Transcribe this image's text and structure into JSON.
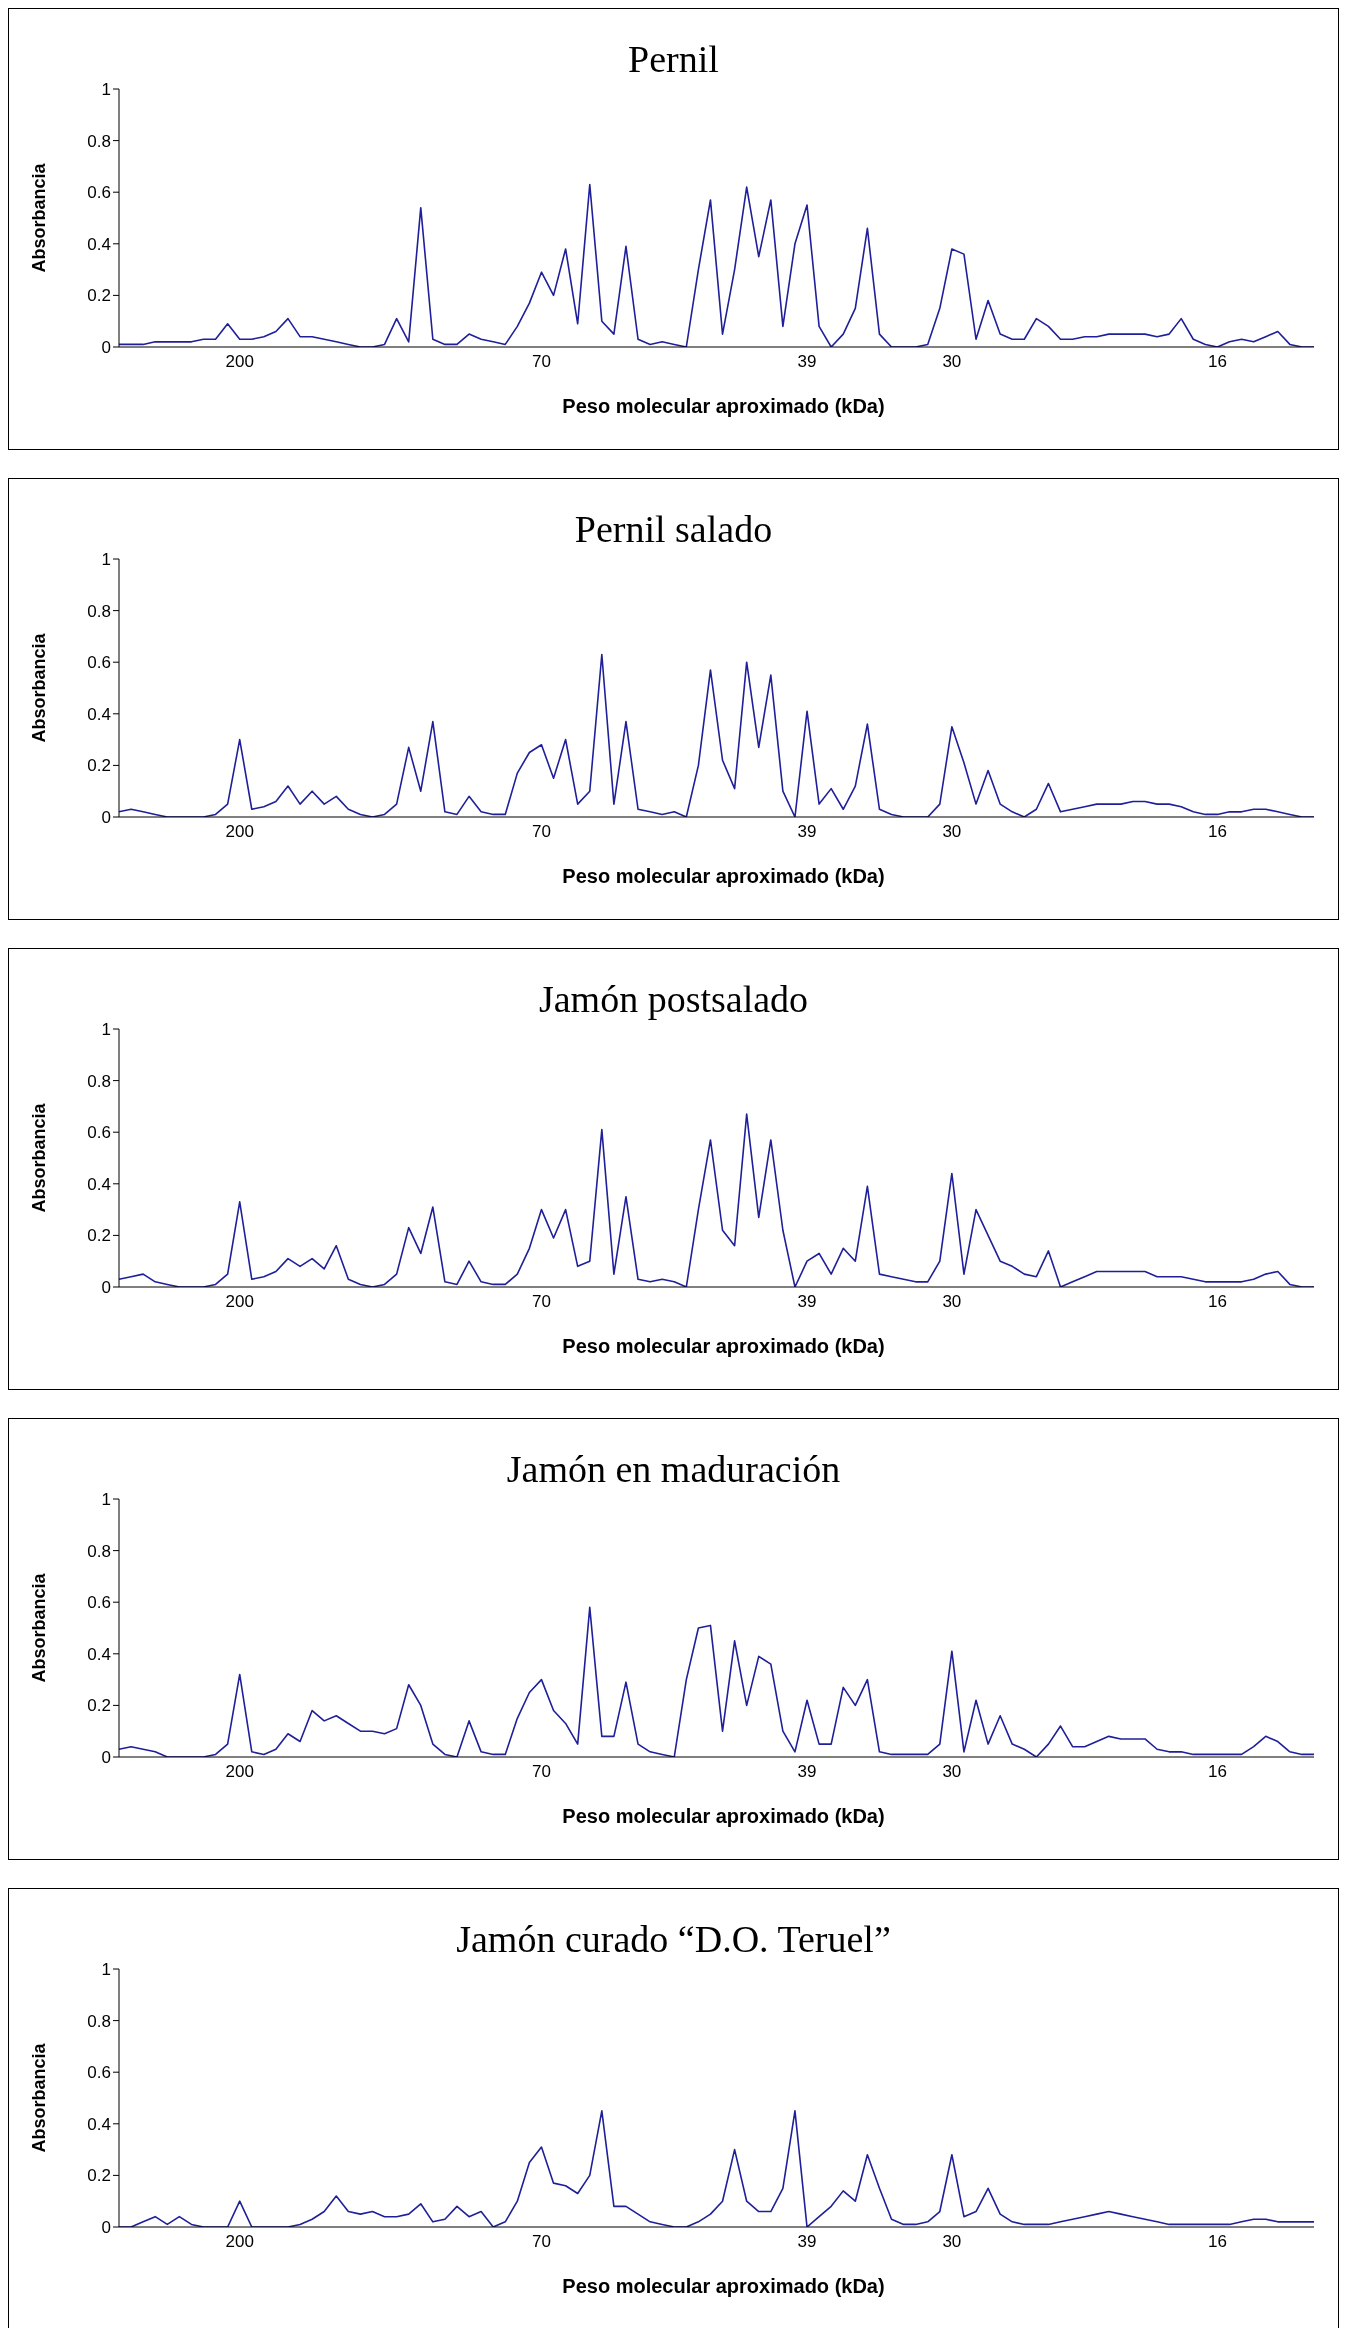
{
  "chart_data": [
    {
      "type": "line",
      "title": "Pernil",
      "xlabel": "Peso molecular aproximado (kDa)",
      "ylabel": "Absorbancia",
      "ylim": [
        0,
        1
      ],
      "yticks": [
        0,
        0.2,
        0.4,
        0.6,
        0.8,
        1
      ],
      "color": "#1f1f99",
      "categories": [
        null,
        null,
        null,
        null,
        null,
        null,
        null,
        null,
        null,
        null,
        "200",
        null,
        null,
        null,
        null,
        null,
        null,
        null,
        null,
        null,
        null,
        null,
        null,
        null,
        null,
        null,
        null,
        null,
        null,
        null,
        null,
        null,
        null,
        null,
        null,
        "70",
        null,
        null,
        null,
        null,
        null,
        null,
        null,
        null,
        null,
        null,
        null,
        null,
        null,
        null,
        null,
        null,
        null,
        null,
        null,
        null,
        null,
        "39",
        null,
        null,
        null,
        null,
        null,
        null,
        null,
        null,
        null,
        null,
        null,
        "30",
        null,
        null,
        null,
        null,
        null,
        null,
        null,
        null,
        null,
        null,
        null,
        null,
        null,
        null,
        null,
        null,
        null,
        null,
        null,
        null,
        null,
        "16",
        null,
        null,
        null,
        null,
        null,
        null,
        null,
        null
      ],
      "values": [
        0.01,
        0.01,
        0.01,
        0.02,
        0.02,
        0.02,
        0.02,
        0.03,
        0.03,
        0.09,
        0.03,
        0.03,
        0.04,
        0.06,
        0.11,
        0.04,
        0.04,
        0.03,
        0.02,
        0.01,
        0,
        0,
        0.01,
        0.11,
        0.02,
        0.54,
        0.03,
        0.01,
        0.01,
        0.05,
        0.03,
        0.02,
        0.01,
        0.08,
        0.17,
        0.29,
        0.2,
        0.38,
        0.09,
        0.63,
        0.1,
        0.05,
        0.39,
        0.03,
        0.01,
        0.02,
        0.01,
        0,
        0.3,
        0.57,
        0.05,
        0.3,
        0.62,
        0.35,
        0.57,
        0.08,
        0.4,
        0.55,
        0.08,
        0,
        0.05,
        0.15,
        0.46,
        0.05,
        0,
        0,
        0,
        0.01,
        0.15,
        0.38,
        0.36,
        0.03,
        0.18,
        0.05,
        0.03,
        0.03,
        0.11,
        0.08,
        0.03,
        0.03,
        0.04,
        0.04,
        0.05,
        0.05,
        0.05,
        0.05,
        0.04,
        0.05,
        0.11,
        0.03,
        0.01,
        0,
        0.02,
        0.03,
        0.02,
        0.04,
        0.06,
        0.01,
        0,
        0
      ]
    },
    {
      "type": "line",
      "title": "Pernil salado",
      "xlabel": "Peso molecular aproximado (kDa)",
      "ylabel": "Absorbancia",
      "ylim": [
        0,
        1
      ],
      "yticks": [
        0,
        0.2,
        0.4,
        0.6,
        0.8,
        1
      ],
      "color": "#1f1f99",
      "categories": [
        null,
        null,
        null,
        null,
        null,
        null,
        null,
        null,
        null,
        null,
        "200",
        null,
        null,
        null,
        null,
        null,
        null,
        null,
        null,
        null,
        null,
        null,
        null,
        null,
        null,
        null,
        null,
        null,
        null,
        null,
        null,
        null,
        null,
        null,
        null,
        "70",
        null,
        null,
        null,
        null,
        null,
        null,
        null,
        null,
        null,
        null,
        null,
        null,
        null,
        null,
        null,
        null,
        null,
        null,
        null,
        null,
        null,
        "39",
        null,
        null,
        null,
        null,
        null,
        null,
        null,
        null,
        null,
        null,
        null,
        "30",
        null,
        null,
        null,
        null,
        null,
        null,
        null,
        null,
        null,
        null,
        null,
        null,
        null,
        null,
        null,
        null,
        null,
        null,
        null,
        null,
        null,
        "16",
        null,
        null,
        null,
        null,
        null,
        null,
        null,
        null
      ],
      "values": [
        0.02,
        0.03,
        0.02,
        0.01,
        0,
        0,
        0,
        0,
        0.01,
        0.05,
        0.3,
        0.03,
        0.04,
        0.06,
        0.12,
        0.05,
        0.1,
        0.05,
        0.08,
        0.03,
        0.01,
        0,
        0.01,
        0.05,
        0.27,
        0.1,
        0.37,
        0.02,
        0.01,
        0.08,
        0.02,
        0.01,
        0.01,
        0.17,
        0.25,
        0.28,
        0.15,
        0.3,
        0.05,
        0.1,
        0.63,
        0.05,
        0.37,
        0.03,
        0.02,
        0.01,
        0.02,
        0,
        0.2,
        0.57,
        0.22,
        0.11,
        0.6,
        0.27,
        0.55,
        0.1,
        0,
        0.41,
        0.05,
        0.11,
        0.03,
        0.12,
        0.36,
        0.03,
        0.01,
        0,
        0,
        0,
        0.05,
        0.35,
        0.21,
        0.05,
        0.18,
        0.05,
        0.02,
        0,
        0.03,
        0.13,
        0.02,
        0.03,
        0.04,
        0.05,
        0.05,
        0.05,
        0.06,
        0.06,
        0.05,
        0.05,
        0.04,
        0.02,
        0.01,
        0.01,
        0.02,
        0.02,
        0.03,
        0.03,
        0.02,
        0.01,
        0,
        0
      ]
    },
    {
      "type": "line",
      "title": "Jamón postsalado",
      "xlabel": "Peso molecular aproximado (kDa)",
      "ylabel": "Absorbancia",
      "ylim": [
        0,
        1
      ],
      "yticks": [
        0,
        0.2,
        0.4,
        0.6,
        0.8,
        1
      ],
      "color": "#1f1f99",
      "categories": [
        null,
        null,
        null,
        null,
        null,
        null,
        null,
        null,
        null,
        null,
        "200",
        null,
        null,
        null,
        null,
        null,
        null,
        null,
        null,
        null,
        null,
        null,
        null,
        null,
        null,
        null,
        null,
        null,
        null,
        null,
        null,
        null,
        null,
        null,
        null,
        "70",
        null,
        null,
        null,
        null,
        null,
        null,
        null,
        null,
        null,
        null,
        null,
        null,
        null,
        null,
        null,
        null,
        null,
        null,
        null,
        null,
        null,
        "39",
        null,
        null,
        null,
        null,
        null,
        null,
        null,
        null,
        null,
        null,
        null,
        "30",
        null,
        null,
        null,
        null,
        null,
        null,
        null,
        null,
        null,
        null,
        null,
        null,
        null,
        null,
        null,
        null,
        null,
        null,
        null,
        null,
        null,
        "16",
        null,
        null,
        null,
        null,
        null,
        null,
        null,
        null
      ],
      "values": [
        0.03,
        0.04,
        0.05,
        0.02,
        0.01,
        0,
        0,
        0,
        0.01,
        0.05,
        0.33,
        0.03,
        0.04,
        0.06,
        0.11,
        0.08,
        0.11,
        0.07,
        0.16,
        0.03,
        0.01,
        0,
        0.01,
        0.05,
        0.23,
        0.13,
        0.31,
        0.02,
        0.01,
        0.1,
        0.02,
        0.01,
        0.01,
        0.05,
        0.15,
        0.3,
        0.19,
        0.3,
        0.08,
        0.1,
        0.61,
        0.05,
        0.35,
        0.03,
        0.02,
        0.03,
        0.02,
        0,
        0.3,
        0.57,
        0.22,
        0.16,
        0.67,
        0.27,
        0.57,
        0.22,
        0,
        0.1,
        0.13,
        0.05,
        0.15,
        0.1,
        0.39,
        0.05,
        0.04,
        0.03,
        0.02,
        0.02,
        0.1,
        0.44,
        0.05,
        0.3,
        0.2,
        0.1,
        0.08,
        0.05,
        0.04,
        0.14,
        0,
        0.02,
        0.04,
        0.06,
        0.06,
        0.06,
        0.06,
        0.06,
        0.04,
        0.04,
        0.04,
        0.03,
        0.02,
        0.02,
        0.02,
        0.02,
        0.03,
        0.05,
        0.06,
        0.01,
        0,
        0
      ]
    },
    {
      "type": "line",
      "title": "Jamón en maduración",
      "xlabel": "Peso molecular aproximado (kDa)",
      "ylabel": "Absorbancia",
      "ylim": [
        0,
        1
      ],
      "yticks": [
        0,
        0.2,
        0.4,
        0.6,
        0.8,
        1
      ],
      "color": "#1f1f99",
      "categories": [
        null,
        null,
        null,
        null,
        null,
        null,
        null,
        null,
        null,
        null,
        "200",
        null,
        null,
        null,
        null,
        null,
        null,
        null,
        null,
        null,
        null,
        null,
        null,
        null,
        null,
        null,
        null,
        null,
        null,
        null,
        null,
        null,
        null,
        null,
        null,
        "70",
        null,
        null,
        null,
        null,
        null,
        null,
        null,
        null,
        null,
        null,
        null,
        null,
        null,
        null,
        null,
        null,
        null,
        null,
        null,
        null,
        null,
        "39",
        null,
        null,
        null,
        null,
        null,
        null,
        null,
        null,
        null,
        null,
        null,
        "30",
        null,
        null,
        null,
        null,
        null,
        null,
        null,
        null,
        null,
        null,
        null,
        null,
        null,
        null,
        null,
        null,
        null,
        null,
        null,
        null,
        null,
        "16",
        null,
        null,
        null,
        null,
        null,
        null,
        null,
        null
      ],
      "values": [
        0.03,
        0.04,
        0.03,
        0.02,
        0,
        0,
        0,
        0,
        0.01,
        0.05,
        0.32,
        0.02,
        0.01,
        0.03,
        0.09,
        0.06,
        0.18,
        0.14,
        0.16,
        0.13,
        0.1,
        0.1,
        0.09,
        0.11,
        0.28,
        0.2,
        0.05,
        0.01,
        0,
        0.14,
        0.02,
        0.01,
        0.01,
        0.15,
        0.25,
        0.3,
        0.18,
        0.13,
        0.05,
        0.58,
        0.08,
        0.08,
        0.29,
        0.05,
        0.02,
        0.01,
        0,
        0.3,
        0.5,
        0.51,
        0.1,
        0.45,
        0.2,
        0.39,
        0.36,
        0.1,
        0.02,
        0.22,
        0.05,
        0.05,
        0.27,
        0.2,
        0.3,
        0.02,
        0.01,
        0.01,
        0.01,
        0.01,
        0.05,
        0.41,
        0.02,
        0.22,
        0.05,
        0.16,
        0.05,
        0.03,
        0,
        0.05,
        0.12,
        0.04,
        0.04,
        0.06,
        0.08,
        0.07,
        0.07,
        0.07,
        0.03,
        0.02,
        0.02,
        0.01,
        0.01,
        0.01,
        0.01,
        0.01,
        0.04,
        0.08,
        0.06,
        0.02,
        0.01,
        0.01
      ]
    },
    {
      "type": "line",
      "title": "Jamón curado “D.O. Teruel”",
      "xlabel": "Peso molecular aproximado (kDa)",
      "ylabel": "Absorbancia",
      "ylim": [
        0,
        1
      ],
      "yticks": [
        0,
        0.2,
        0.4,
        0.6,
        0.8,
        1
      ],
      "color": "#1f1f99",
      "categories": [
        null,
        null,
        null,
        null,
        null,
        null,
        null,
        null,
        null,
        null,
        "200",
        null,
        null,
        null,
        null,
        null,
        null,
        null,
        null,
        null,
        null,
        null,
        null,
        null,
        null,
        null,
        null,
        null,
        null,
        null,
        null,
        null,
        null,
        null,
        null,
        "70",
        null,
        null,
        null,
        null,
        null,
        null,
        null,
        null,
        null,
        null,
        null,
        null,
        null,
        null,
        null,
        null,
        null,
        null,
        null,
        null,
        null,
        "39",
        null,
        null,
        null,
        null,
        null,
        null,
        null,
        null,
        null,
        null,
        null,
        "30",
        null,
        null,
        null,
        null,
        null,
        null,
        null,
        null,
        null,
        null,
        null,
        null,
        null,
        null,
        null,
        null,
        null,
        null,
        null,
        null,
        null,
        "16",
        null,
        null,
        null,
        null,
        null,
        null,
        null,
        null
      ],
      "values": [
        0,
        0,
        0.02,
        0.04,
        0.01,
        0.04,
        0.01,
        0,
        0,
        0,
        0.1,
        0,
        0,
        0,
        0,
        0.01,
        0.03,
        0.06,
        0.12,
        0.06,
        0.05,
        0.06,
        0.04,
        0.04,
        0.05,
        0.09,
        0.02,
        0.03,
        0.08,
        0.04,
        0.06,
        0,
        0.02,
        0.1,
        0.25,
        0.31,
        0.17,
        0.16,
        0.13,
        0.2,
        0.45,
        0.08,
        0.08,
        0.05,
        0.02,
        0.01,
        0,
        0,
        0.02,
        0.05,
        0.1,
        0.3,
        0.1,
        0.06,
        0.06,
        0.15,
        0.45,
        0,
        0.04,
        0.08,
        0.14,
        0.1,
        0.28,
        0.15,
        0.03,
        0.01,
        0.01,
        0.02,
        0.06,
        0.28,
        0.04,
        0.06,
        0.15,
        0.05,
        0.02,
        0.01,
        0.01,
        0.01,
        0.02,
        0.03,
        0.04,
        0.05,
        0.06,
        0.05,
        0.04,
        0.03,
        0.02,
        0.01,
        0.01,
        0.01,
        0.01,
        0.01,
        0.01,
        0.02,
        0.03,
        0.03,
        0.02,
        0.02,
        0.02,
        0.02
      ]
    }
  ]
}
